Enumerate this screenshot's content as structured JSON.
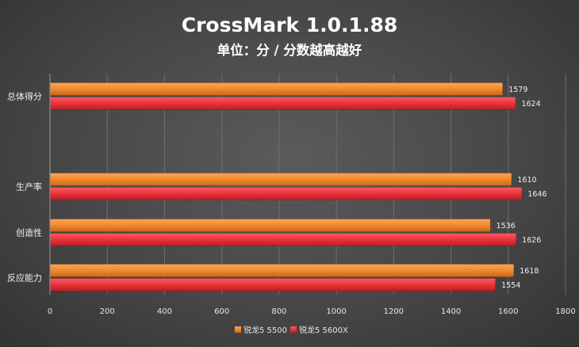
{
  "chart_data": {
    "type": "bar",
    "orientation": "horizontal",
    "title": "CrossMark 1.0.1.88",
    "subtitle": "单位：分 / 分数越高越好",
    "categories": [
      "总体得分",
      "",
      "生产率",
      "创造性",
      "反应能力"
    ],
    "series": [
      {
        "name": "锐龙5 5500",
        "values": [
          1579,
          null,
          1610,
          1536,
          1618
        ],
        "color": "#f08a2e"
      },
      {
        "name": "锐龙5 5600X",
        "values": [
          1624,
          null,
          1646,
          1626,
          1554
        ],
        "color": "#e8333a"
      }
    ],
    "xlim": [
      0,
      1800
    ],
    "x_ticks": [
      0,
      200,
      400,
      600,
      800,
      1000,
      1200,
      1400,
      1600,
      1800
    ],
    "grid": true,
    "legend_position": "bottom"
  }
}
